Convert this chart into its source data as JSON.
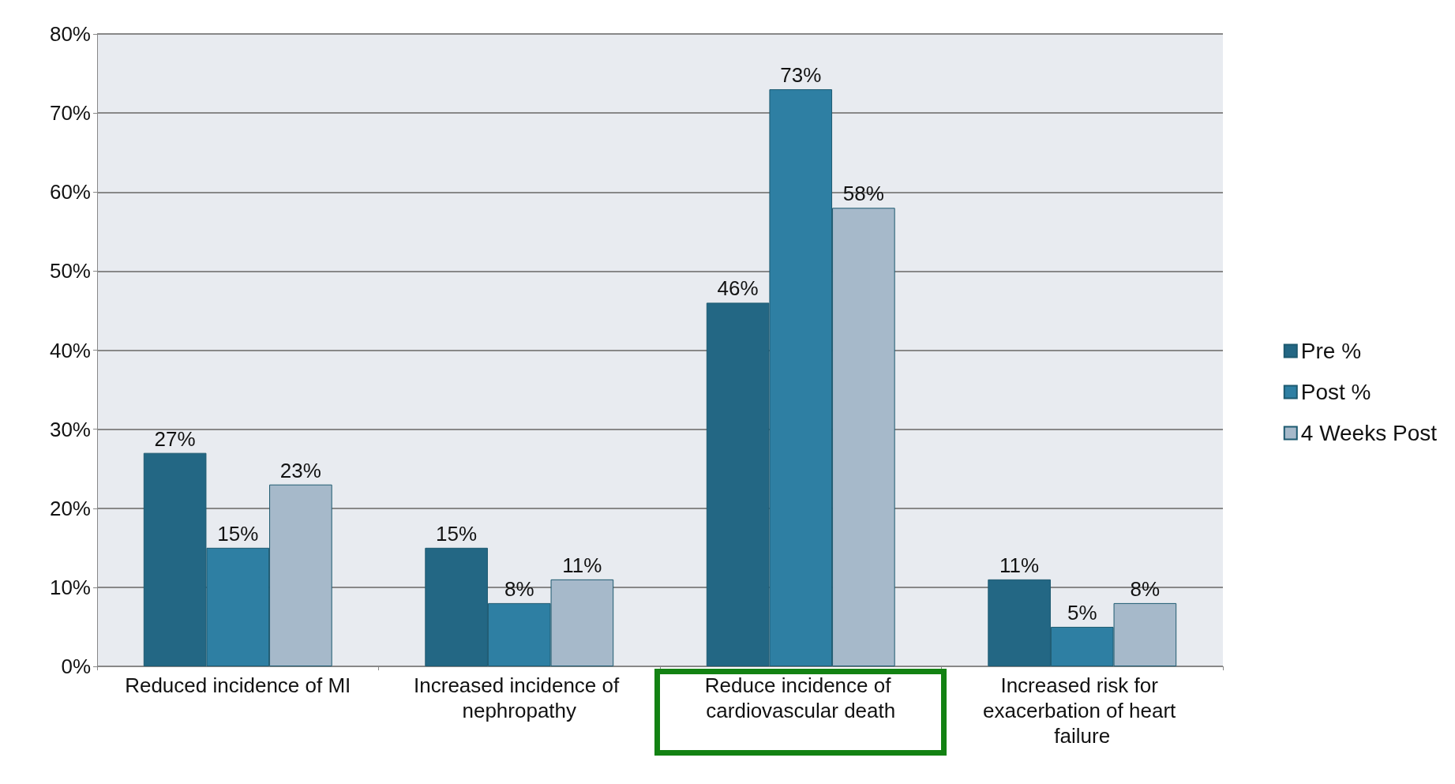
{
  "chart_data": {
    "type": "bar",
    "categories": [
      "Reduced incidence of MI",
      "Increased incidence of nephropathy",
      "Reduce incidence of cardiovascular death",
      "Increased risk for exacerbation of heart failure"
    ],
    "series": [
      {
        "name": "Pre %",
        "color": "#236784",
        "values": [
          27,
          15,
          46,
          11
        ],
        "value_labels": [
          "27%",
          "15%",
          "46%",
          "11%"
        ]
      },
      {
        "name": "Post %",
        "color": "#2e7fa3",
        "values": [
          15,
          8,
          73,
          5
        ],
        "value_labels": [
          "15%",
          "8%",
          "73%",
          "5%"
        ]
      },
      {
        "name": "4 Weeks Post",
        "color": "#a6b9ca",
        "values": [
          23,
          11,
          58,
          8
        ],
        "value_labels": [
          "23%",
          "11%",
          "58%",
          "8%"
        ]
      }
    ],
    "ylim": [
      0,
      80
    ],
    "yticks": [
      {
        "value": 0,
        "label": "0%"
      },
      {
        "value": 10,
        "label": "10%"
      },
      {
        "value": 20,
        "label": "20%"
      },
      {
        "value": 30,
        "label": "30%"
      },
      {
        "value": 40,
        "label": "40%"
      },
      {
        "value": 50,
        "label": "50%"
      },
      {
        "value": 60,
        "label": "60%"
      },
      {
        "value": 70,
        "label": "70%"
      },
      {
        "value": 80,
        "label": "80%"
      }
    ],
    "grid": "y",
    "legend": "right"
  }
}
